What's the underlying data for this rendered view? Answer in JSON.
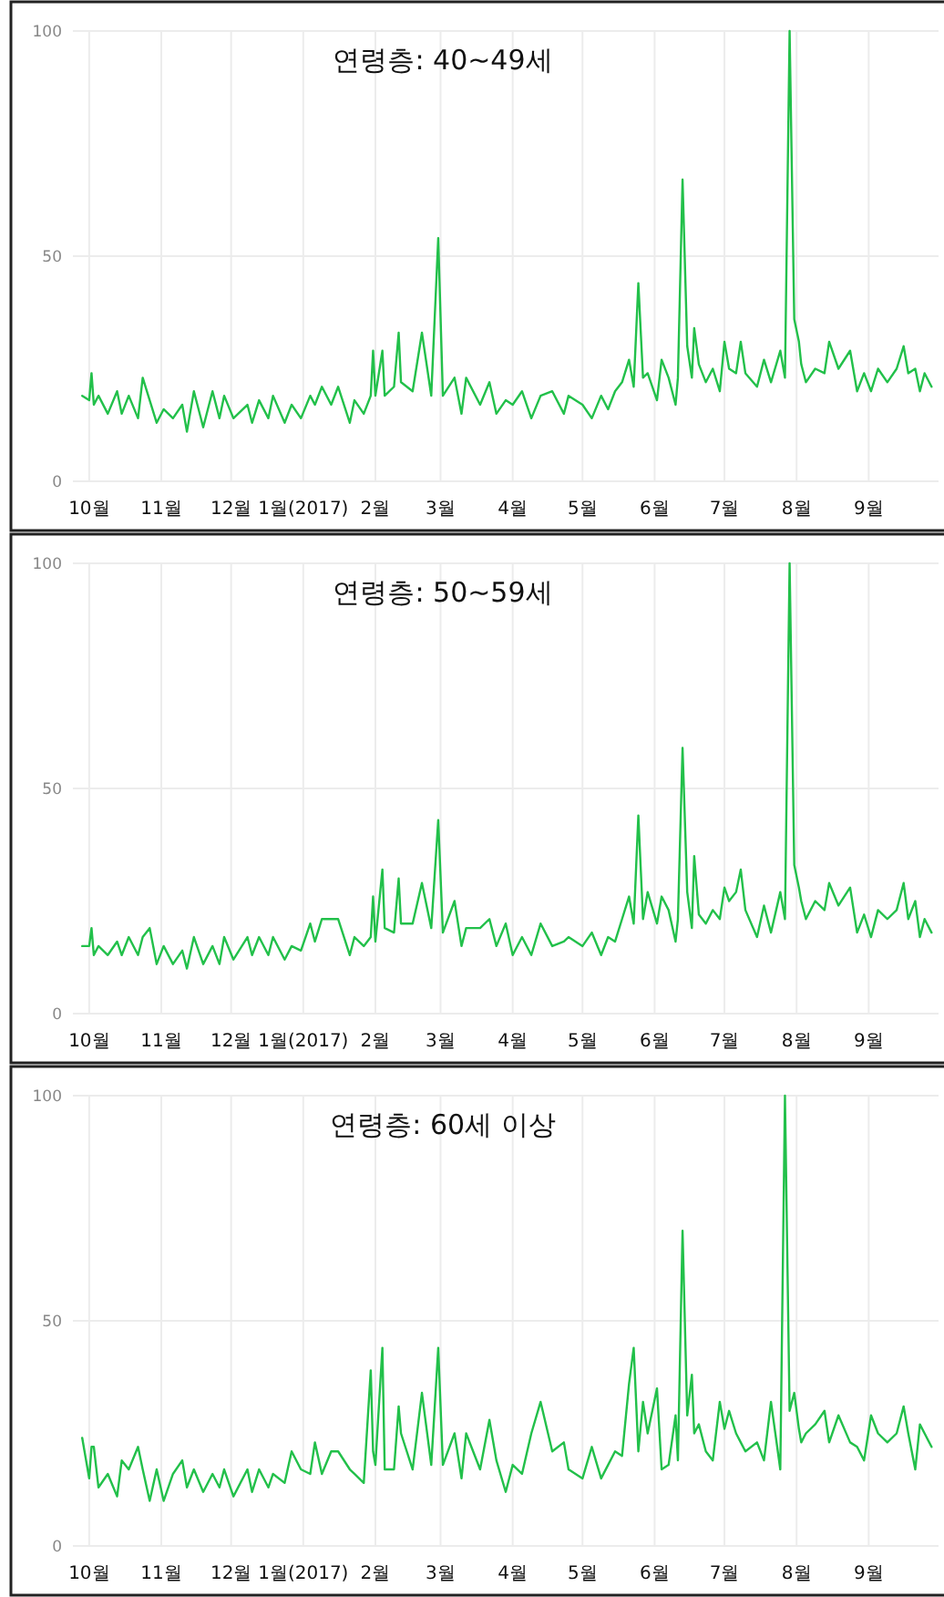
{
  "chart_data": [
    {
      "type": "line",
      "title": "연령층: 40~49세",
      "grid": true,
      "ylim": [
        0,
        100
      ],
      "yticks": [
        0,
        50,
        100
      ],
      "xlim": [
        "2016-09-24",
        "2017-10-01"
      ],
      "xticks": [
        {
          "value": "2016-10-01",
          "label": "10월"
        },
        {
          "value": "2016-11-01",
          "label": "11월"
        },
        {
          "value": "2016-12-01",
          "label": "12월"
        },
        {
          "value": "2017-01-01",
          "label": "1월(2017)"
        },
        {
          "value": "2017-02-01",
          "label": "2월"
        },
        {
          "value": "2017-03-01",
          "label": "3월"
        },
        {
          "value": "2017-04-01",
          "label": "4월"
        },
        {
          "value": "2017-05-01",
          "label": "5월"
        },
        {
          "value": "2017-06-01",
          "label": "6월"
        },
        {
          "value": "2017-07-01",
          "label": "7월"
        },
        {
          "value": "2017-08-01",
          "label": "8월"
        },
        {
          "value": "2017-09-01",
          "label": "9월"
        }
      ],
      "x": [
        "2016-09-28",
        "2016-10-01",
        "2016-10-02",
        "2016-10-03",
        "2016-10-05",
        "2016-10-09",
        "2016-10-13",
        "2016-10-15",
        "2016-10-18",
        "2016-10-22",
        "2016-10-24",
        "2016-10-27",
        "2016-10-30",
        "2016-11-02",
        "2016-11-06",
        "2016-11-10",
        "2016-11-12",
        "2016-11-15",
        "2016-11-19",
        "2016-11-23",
        "2016-11-26",
        "2016-11-28",
        "2016-12-02",
        "2016-12-08",
        "2016-12-10",
        "2016-12-13",
        "2016-12-17",
        "2016-12-19",
        "2016-12-24",
        "2016-12-27",
        "2016-12-31",
        "2017-01-04",
        "2017-01-06",
        "2017-01-09",
        "2017-01-13",
        "2017-01-16",
        "2017-01-21",
        "2017-01-23",
        "2017-01-27",
        "2017-01-30",
        "2017-01-31",
        "2017-02-01",
        "2017-02-04",
        "2017-02-05",
        "2017-02-09",
        "2017-02-11",
        "2017-02-12",
        "2017-02-17",
        "2017-02-21",
        "2017-02-25",
        "2017-02-28",
        "2017-03-02",
        "2017-03-07",
        "2017-03-10",
        "2017-03-12",
        "2017-03-18",
        "2017-03-22",
        "2017-03-25",
        "2017-03-29",
        "2017-04-01",
        "2017-04-05",
        "2017-04-09",
        "2017-04-13",
        "2017-04-18",
        "2017-04-23",
        "2017-04-25",
        "2017-05-01",
        "2017-05-05",
        "2017-05-09",
        "2017-05-12",
        "2017-05-15",
        "2017-05-18",
        "2017-05-21",
        "2017-05-23",
        "2017-05-25",
        "2017-05-27",
        "2017-05-29",
        "2017-06-02",
        "2017-06-04",
        "2017-06-07",
        "2017-06-10",
        "2017-06-11",
        "2017-06-13",
        "2017-06-15",
        "2017-06-17",
        "2017-06-18",
        "2017-06-20",
        "2017-06-23",
        "2017-06-26",
        "2017-06-29",
        "2017-07-01",
        "2017-07-03",
        "2017-07-06",
        "2017-07-08",
        "2017-07-10",
        "2017-07-15",
        "2017-07-18",
        "2017-07-21",
        "2017-07-25",
        "2017-07-27",
        "2017-07-29",
        "2017-07-31",
        "2017-08-02",
        "2017-08-03",
        "2017-08-05",
        "2017-08-09",
        "2017-08-13",
        "2017-08-15",
        "2017-08-19",
        "2017-08-24",
        "2017-08-27",
        "2017-08-30",
        "2017-09-02",
        "2017-09-05",
        "2017-09-09",
        "2017-09-13",
        "2017-09-16",
        "2017-09-18",
        "2017-09-21",
        "2017-09-23",
        "2017-09-25",
        "2017-09-28"
      ],
      "series": [
        {
          "color": "#22c04a",
          "values": [
            19,
            18,
            24,
            17,
            19,
            15,
            20,
            15,
            19,
            14,
            23,
            18,
            13,
            16,
            14,
            17,
            11,
            20,
            12,
            20,
            14,
            19,
            14,
            17,
            13,
            18,
            14,
            19,
            13,
            17,
            14,
            19,
            17,
            21,
            17,
            21,
            13,
            18,
            15,
            19,
            29,
            19,
            29,
            19,
            21,
            33,
            22,
            20,
            33,
            19,
            54,
            19,
            23,
            15,
            23,
            17,
            22,
            15,
            18,
            17,
            20,
            14,
            19,
            20,
            15,
            19,
            17,
            14,
            19,
            16,
            20,
            22,
            27,
            21,
            44,
            23,
            24,
            18,
            27,
            23,
            17,
            23,
            67,
            30,
            23,
            34,
            26,
            22,
            25,
            20,
            31,
            25,
            24,
            31,
            24,
            21,
            27,
            22,
            29,
            23,
            100,
            36,
            31,
            26,
            22,
            25,
            24,
            31,
            25,
            29,
            20,
            24,
            20,
            25,
            22,
            25,
            30,
            24,
            25,
            20,
            24,
            21
          ]
        }
      ]
    },
    {
      "type": "line",
      "title": "연령층: 50~59세",
      "grid": true,
      "ylim": [
        0,
        100
      ],
      "yticks": [
        0,
        50,
        100
      ],
      "xlim": [
        "2016-09-24",
        "2017-10-01"
      ],
      "xticks": [
        {
          "value": "2016-10-01",
          "label": "10월"
        },
        {
          "value": "2016-11-01",
          "label": "11월"
        },
        {
          "value": "2016-12-01",
          "label": "12월"
        },
        {
          "value": "2017-01-01",
          "label": "1월(2017)"
        },
        {
          "value": "2017-02-01",
          "label": "2월"
        },
        {
          "value": "2017-03-01",
          "label": "3월"
        },
        {
          "value": "2017-04-01",
          "label": "4월"
        },
        {
          "value": "2017-05-01",
          "label": "5월"
        },
        {
          "value": "2017-06-01",
          "label": "6월"
        },
        {
          "value": "2017-07-01",
          "label": "7월"
        },
        {
          "value": "2017-08-01",
          "label": "8월"
        },
        {
          "value": "2017-09-01",
          "label": "9월"
        }
      ],
      "x": [
        "2016-09-28",
        "2016-10-01",
        "2016-10-02",
        "2016-10-03",
        "2016-10-05",
        "2016-10-09",
        "2016-10-13",
        "2016-10-15",
        "2016-10-18",
        "2016-10-22",
        "2016-10-24",
        "2016-10-27",
        "2016-10-30",
        "2016-11-02",
        "2016-11-06",
        "2016-11-10",
        "2016-11-12",
        "2016-11-15",
        "2016-11-19",
        "2016-11-23",
        "2016-11-26",
        "2016-11-28",
        "2016-12-02",
        "2016-12-08",
        "2016-12-10",
        "2016-12-13",
        "2016-12-17",
        "2016-12-19",
        "2016-12-24",
        "2016-12-27",
        "2016-12-31",
        "2017-01-04",
        "2017-01-06",
        "2017-01-09",
        "2017-01-13",
        "2017-01-16",
        "2017-01-21",
        "2017-01-23",
        "2017-01-27",
        "2017-01-30",
        "2017-01-31",
        "2017-02-01",
        "2017-02-04",
        "2017-02-05",
        "2017-02-09",
        "2017-02-11",
        "2017-02-12",
        "2017-02-17",
        "2017-02-21",
        "2017-02-25",
        "2017-02-28",
        "2017-03-02",
        "2017-03-07",
        "2017-03-10",
        "2017-03-12",
        "2017-03-18",
        "2017-03-22",
        "2017-03-25",
        "2017-03-29",
        "2017-04-01",
        "2017-04-05",
        "2017-04-09",
        "2017-04-13",
        "2017-04-18",
        "2017-04-23",
        "2017-04-25",
        "2017-05-01",
        "2017-05-05",
        "2017-05-09",
        "2017-05-12",
        "2017-05-15",
        "2017-05-18",
        "2017-05-21",
        "2017-05-23",
        "2017-05-25",
        "2017-05-27",
        "2017-05-29",
        "2017-06-02",
        "2017-06-04",
        "2017-06-07",
        "2017-06-10",
        "2017-06-11",
        "2017-06-13",
        "2017-06-15",
        "2017-06-17",
        "2017-06-18",
        "2017-06-20",
        "2017-06-23",
        "2017-06-26",
        "2017-06-29",
        "2017-07-01",
        "2017-07-03",
        "2017-07-06",
        "2017-07-08",
        "2017-07-10",
        "2017-07-15",
        "2017-07-18",
        "2017-07-21",
        "2017-07-25",
        "2017-07-27",
        "2017-07-29",
        "2017-07-31",
        "2017-08-02",
        "2017-08-03",
        "2017-08-05",
        "2017-08-09",
        "2017-08-13",
        "2017-08-15",
        "2017-08-19",
        "2017-08-24",
        "2017-08-27",
        "2017-08-30",
        "2017-09-02",
        "2017-09-05",
        "2017-09-09",
        "2017-09-13",
        "2017-09-16",
        "2017-09-18",
        "2017-09-21",
        "2017-09-23",
        "2017-09-25",
        "2017-09-28"
      ],
      "series": [
        {
          "color": "#22c04a",
          "values": [
            15,
            15,
            19,
            13,
            15,
            13,
            16,
            13,
            17,
            13,
            17,
            19,
            11,
            15,
            11,
            14,
            10,
            17,
            11,
            15,
            11,
            17,
            12,
            17,
            13,
            17,
            13,
            17,
            12,
            15,
            14,
            20,
            16,
            21,
            21,
            21,
            13,
            17,
            15,
            17,
            26,
            16,
            32,
            19,
            18,
            30,
            20,
            20,
            29,
            19,
            43,
            18,
            25,
            15,
            19,
            19,
            21,
            15,
            20,
            13,
            17,
            13,
            20,
            15,
            16,
            17,
            15,
            18,
            13,
            17,
            16,
            21,
            26,
            20,
            44,
            21,
            27,
            20,
            26,
            23,
            16,
            21,
            59,
            27,
            19,
            35,
            22,
            20,
            23,
            21,
            28,
            25,
            27,
            32,
            23,
            17,
            24,
            18,
            27,
            21,
            100,
            33,
            28,
            25,
            21,
            25,
            23,
            29,
            24,
            28,
            18,
            22,
            17,
            23,
            21,
            23,
            29,
            21,
            25,
            17,
            21,
            18
          ]
        }
      ]
    },
    {
      "type": "line",
      "title": "연령층: 60세 이상",
      "grid": true,
      "ylim": [
        0,
        100
      ],
      "yticks": [
        0,
        50,
        100
      ],
      "xlim": [
        "2016-09-24",
        "2017-10-01"
      ],
      "xticks": [
        {
          "value": "2016-10-01",
          "label": "10월"
        },
        {
          "value": "2016-11-01",
          "label": "11월"
        },
        {
          "value": "2016-12-01",
          "label": "12월"
        },
        {
          "value": "2017-01-01",
          "label": "1월(2017)"
        },
        {
          "value": "2017-02-01",
          "label": "2월"
        },
        {
          "value": "2017-03-01",
          "label": "3월"
        },
        {
          "value": "2017-04-01",
          "label": "4월"
        },
        {
          "value": "2017-05-01",
          "label": "5월"
        },
        {
          "value": "2017-06-01",
          "label": "6월"
        },
        {
          "value": "2017-07-01",
          "label": "7월"
        },
        {
          "value": "2017-08-01",
          "label": "8월"
        },
        {
          "value": "2017-09-01",
          "label": "9월"
        }
      ],
      "x": [
        "2016-09-28",
        "2016-10-01",
        "2016-10-02",
        "2016-10-03",
        "2016-10-05",
        "2016-10-09",
        "2016-10-13",
        "2016-10-15",
        "2016-10-18",
        "2016-10-22",
        "2016-10-24",
        "2016-10-27",
        "2016-10-30",
        "2016-11-02",
        "2016-11-06",
        "2016-11-10",
        "2016-11-12",
        "2016-11-15",
        "2016-11-19",
        "2016-11-23",
        "2016-11-26",
        "2016-11-28",
        "2016-12-02",
        "2016-12-08",
        "2016-12-10",
        "2016-12-13",
        "2016-12-17",
        "2016-12-19",
        "2016-12-24",
        "2016-12-27",
        "2016-12-31",
        "2017-01-04",
        "2017-01-06",
        "2017-01-09",
        "2017-01-13",
        "2017-01-16",
        "2017-01-21",
        "2017-01-23",
        "2017-01-27",
        "2017-01-30",
        "2017-01-31",
        "2017-02-01",
        "2017-02-04",
        "2017-02-05",
        "2017-02-09",
        "2017-02-11",
        "2017-02-12",
        "2017-02-17",
        "2017-02-21",
        "2017-02-25",
        "2017-02-28",
        "2017-03-02",
        "2017-03-07",
        "2017-03-10",
        "2017-03-12",
        "2017-03-18",
        "2017-03-22",
        "2017-03-25",
        "2017-03-29",
        "2017-04-01",
        "2017-04-05",
        "2017-04-09",
        "2017-04-13",
        "2017-04-18",
        "2017-04-23",
        "2017-04-25",
        "2017-05-01",
        "2017-05-05",
        "2017-05-09",
        "2017-05-12",
        "2017-05-15",
        "2017-05-18",
        "2017-05-21",
        "2017-05-23",
        "2017-05-25",
        "2017-05-27",
        "2017-05-29",
        "2017-06-02",
        "2017-06-04",
        "2017-06-07",
        "2017-06-10",
        "2017-06-11",
        "2017-06-13",
        "2017-06-15",
        "2017-06-17",
        "2017-06-18",
        "2017-06-20",
        "2017-06-23",
        "2017-06-26",
        "2017-06-29",
        "2017-07-01",
        "2017-07-03",
        "2017-07-06",
        "2017-07-08",
        "2017-07-10",
        "2017-07-15",
        "2017-07-18",
        "2017-07-21",
        "2017-07-25",
        "2017-07-27",
        "2017-07-29",
        "2017-07-31",
        "2017-08-02",
        "2017-08-03",
        "2017-08-05",
        "2017-08-09",
        "2017-08-13",
        "2017-08-15",
        "2017-08-19",
        "2017-08-24",
        "2017-08-27",
        "2017-08-30",
        "2017-09-02",
        "2017-09-05",
        "2017-09-09",
        "2017-09-13",
        "2017-09-16",
        "2017-09-18",
        "2017-09-21",
        "2017-09-23",
        "2017-09-25",
        "2017-09-28"
      ],
      "series": [
        {
          "color": "#22c04a",
          "values": [
            24,
            15,
            22,
            22,
            13,
            16,
            11,
            19,
            17,
            22,
            17,
            10,
            17,
            10,
            16,
            19,
            13,
            17,
            12,
            16,
            13,
            17,
            11,
            17,
            12,
            17,
            13,
            16,
            14,
            21,
            17,
            16,
            23,
            16,
            21,
            21,
            17,
            16,
            14,
            39,
            21,
            18,
            44,
            17,
            17,
            31,
            25,
            17,
            34,
            18,
            44,
            18,
            25,
            15,
            25,
            17,
            28,
            19,
            12,
            18,
            16,
            25,
            32,
            21,
            23,
            17,
            15,
            22,
            15,
            18,
            21,
            20,
            36,
            44,
            21,
            32,
            25,
            35,
            17,
            18,
            29,
            19,
            70,
            29,
            38,
            25,
            27,
            21,
            19,
            32,
            26,
            30,
            25,
            23,
            21,
            23,
            19,
            32,
            17,
            100,
            30,
            34,
            26,
            23,
            25,
            27,
            30,
            23,
            29,
            23,
            22,
            19,
            29,
            25,
            23,
            25,
            31,
            25,
            17,
            27,
            25,
            22
          ]
        }
      ]
    }
  ]
}
